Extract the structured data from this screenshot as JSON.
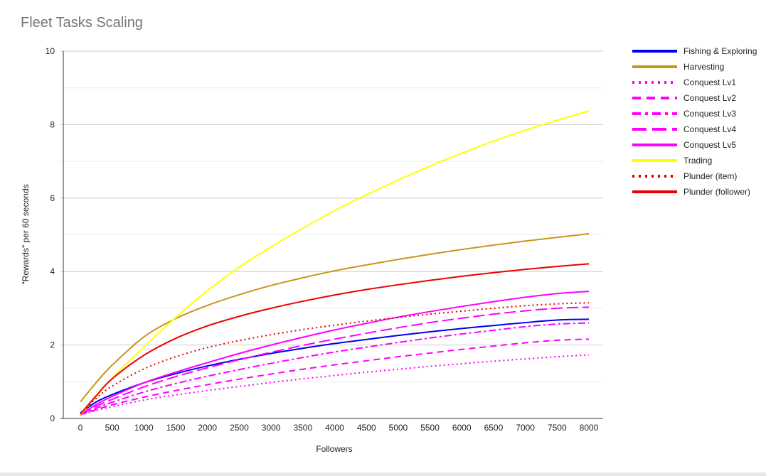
{
  "chart_data": {
    "type": "line",
    "title": "Fleet Tasks Scaling",
    "xlabel": "Followers",
    "ylabel": "\"Rewards\" per 60 seconds",
    "xlim": [
      0,
      8000
    ],
    "ylim": [
      0,
      10
    ],
    "x_ticks": [
      0,
      500,
      1000,
      1500,
      2000,
      2500,
      3000,
      3500,
      4000,
      4500,
      5000,
      5500,
      6000,
      6500,
      7000,
      7500,
      8000
    ],
    "y_ticks": [
      0,
      2,
      4,
      6,
      8,
      10
    ],
    "grid": true,
    "legend_position": "right",
    "x": [
      0,
      250,
      500,
      1000,
      1500,
      2000,
      2500,
      3000,
      3500,
      4000,
      4500,
      5000,
      5500,
      6000,
      6500,
      7000,
      7500,
      8000
    ],
    "series": [
      {
        "name": "Fishing & Exploring",
        "color": "#0000ee",
        "dash": "solid",
        "values": [
          0.15,
          0.45,
          0.65,
          0.97,
          1.22,
          1.43,
          1.61,
          1.77,
          1.91,
          2.04,
          2.15,
          2.26,
          2.36,
          2.45,
          2.53,
          2.61,
          2.68,
          2.7
        ]
      },
      {
        "name": "Harvesting",
        "color": "#c9961a",
        "dash": "solid",
        "values": [
          0.45,
          0.98,
          1.45,
          2.22,
          2.72,
          3.08,
          3.37,
          3.62,
          3.83,
          4.02,
          4.18,
          4.33,
          4.47,
          4.6,
          4.72,
          4.83,
          4.93,
          5.03
        ]
      },
      {
        "name": "Conquest Lv1",
        "color": "#ff00ff",
        "dash": "dot",
        "values": [
          0.1,
          0.22,
          0.32,
          0.5,
          0.64,
          0.76,
          0.87,
          0.98,
          1.08,
          1.17,
          1.26,
          1.34,
          1.42,
          1.49,
          1.56,
          1.62,
          1.68,
          1.73
        ]
      },
      {
        "name": "Conquest Lv2",
        "color": "#ff00ff",
        "dash": "dash",
        "values": [
          0.1,
          0.24,
          0.37,
          0.58,
          0.76,
          0.92,
          1.07,
          1.21,
          1.34,
          1.46,
          1.57,
          1.68,
          1.78,
          1.88,
          1.97,
          2.06,
          2.13,
          2.16
        ]
      },
      {
        "name": "Conquest Lv3",
        "color": "#ff00ff",
        "dash": "dashdot",
        "values": [
          0.1,
          0.28,
          0.44,
          0.72,
          0.95,
          1.15,
          1.33,
          1.5,
          1.66,
          1.81,
          1.94,
          2.07,
          2.19,
          2.3,
          2.4,
          2.5,
          2.57,
          2.6
        ]
      },
      {
        "name": "Conquest Lv4",
        "color": "#ff00ff",
        "dash": "longdash",
        "values": [
          0.1,
          0.33,
          0.52,
          0.86,
          1.14,
          1.38,
          1.6,
          1.8,
          1.99,
          2.16,
          2.32,
          2.47,
          2.61,
          2.73,
          2.84,
          2.93,
          3.0,
          3.03
        ]
      },
      {
        "name": "Conquest Lv5",
        "color": "#ff00ff",
        "dash": "solid",
        "values": [
          0.1,
          0.38,
          0.6,
          0.97,
          1.26,
          1.52,
          1.77,
          2.0,
          2.21,
          2.41,
          2.59,
          2.76,
          2.91,
          3.05,
          3.18,
          3.3,
          3.4,
          3.46
        ]
      },
      {
        "name": "Trading",
        "color": "#ffff00",
        "dash": "solid",
        "values": [
          0.1,
          0.6,
          1.1,
          1.95,
          2.75,
          3.48,
          4.12,
          4.67,
          5.18,
          5.66,
          6.09,
          6.49,
          6.87,
          7.22,
          7.55,
          7.85,
          8.12,
          8.37
        ]
      },
      {
        "name": "Plunder (item)",
        "color": "#dd0000",
        "dash": "dot",
        "values": [
          0.12,
          0.55,
          0.88,
          1.35,
          1.68,
          1.93,
          2.12,
          2.28,
          2.42,
          2.54,
          2.65,
          2.75,
          2.84,
          2.92,
          3.0,
          3.07,
          3.12,
          3.15
        ]
      },
      {
        "name": "Plunder (follower)",
        "color": "#ee0000",
        "dash": "solid",
        "values": [
          0.12,
          0.62,
          1.08,
          1.72,
          2.18,
          2.52,
          2.78,
          3.0,
          3.19,
          3.36,
          3.51,
          3.64,
          3.76,
          3.87,
          3.97,
          4.06,
          4.14,
          4.21
        ]
      }
    ]
  }
}
